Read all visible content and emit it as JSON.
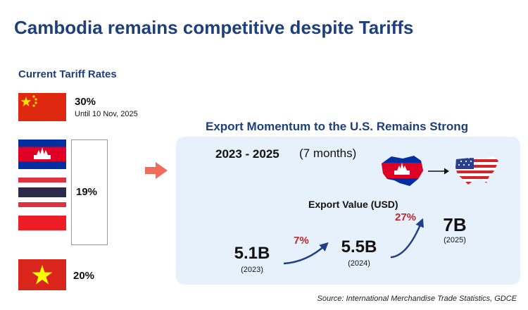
{
  "title": "Cambodia remains competitive despite Tariffs",
  "tariffs": {
    "heading": "Current Tariff Rates",
    "china": {
      "rate": "30%",
      "note": "Until 10 Nov, 2025",
      "flag": "china-flag"
    },
    "group": {
      "rate": "19%",
      "flags": [
        "cambodia-flag",
        "thailand-flag",
        "indonesia-flag"
      ]
    },
    "vietnam": {
      "rate": "20%",
      "flag": "vietnam-flag"
    }
  },
  "panel": {
    "title": "Export Momentum to the U.S. Remains Strong",
    "period": "2023 - 2025",
    "period_note": "(7 months)",
    "export_label": "Export Value (USD)"
  },
  "chart_data": {
    "type": "line",
    "title": "Export Momentum to the U.S. Remains Strong",
    "ylabel": "Export Value (USD)",
    "categories": [
      "(2023)",
      "(2024)",
      "(2025)"
    ],
    "value_labels": [
      "5.1B",
      "5.5B",
      "7B"
    ],
    "values": [
      5.1,
      5.5,
      7
    ],
    "growth_labels": [
      "7%",
      "27%"
    ],
    "growth": [
      7,
      27
    ]
  },
  "source": "Source: International Merchandise Trade Statistics, GDCE",
  "colors": {
    "navy": "#1d3f7a",
    "accent_red": "#c0282f",
    "panel_bg": "#e7f1fb",
    "arrow": "#f26b5b"
  }
}
